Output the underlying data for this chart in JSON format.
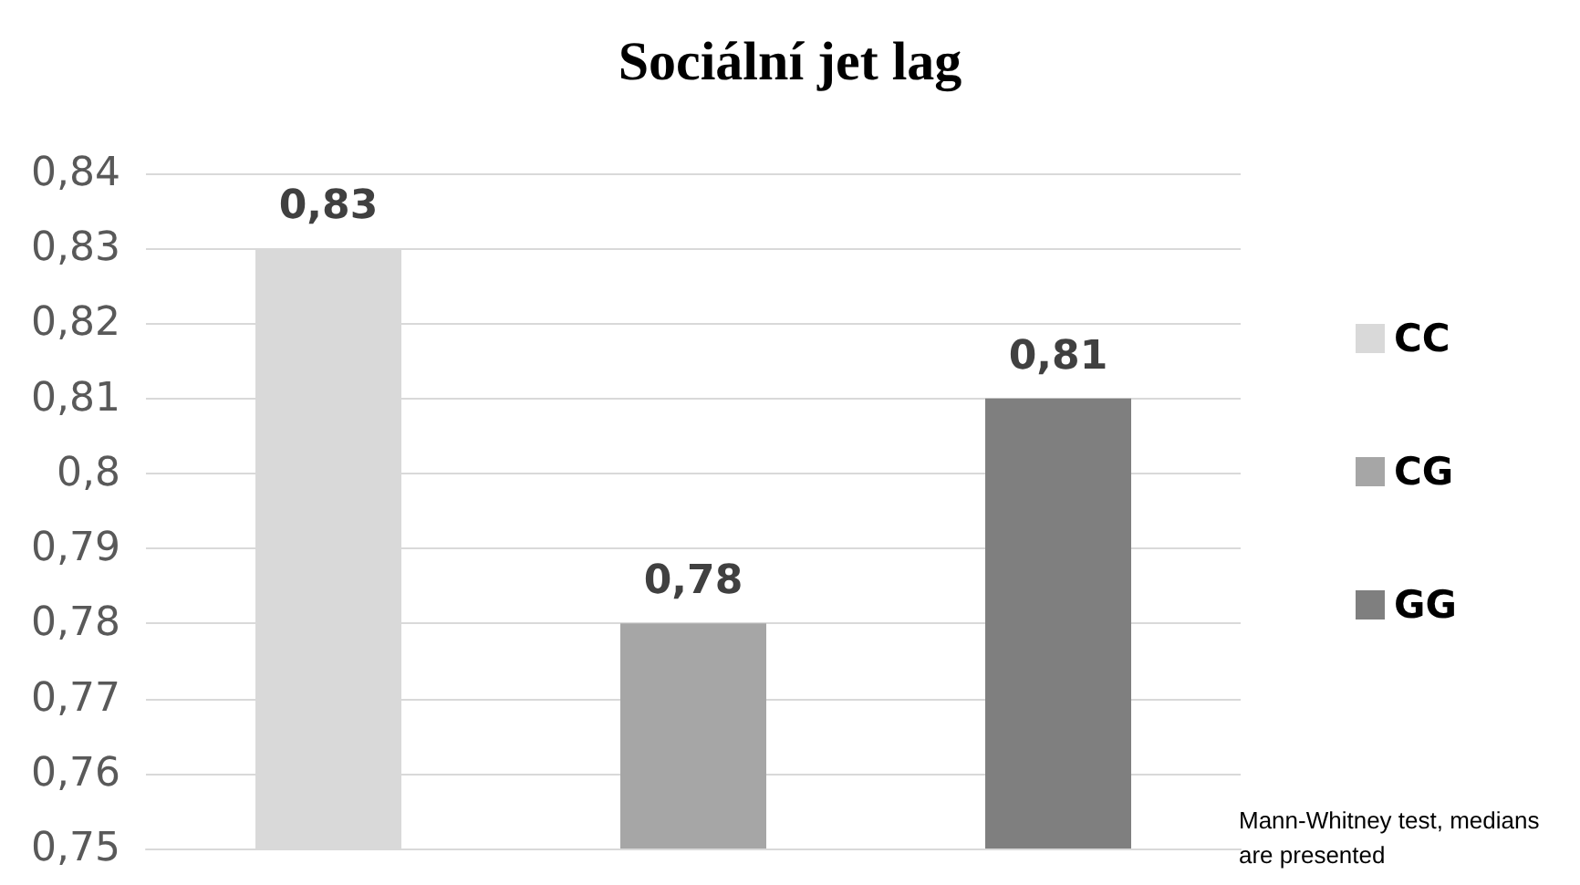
{
  "chart_data": {
    "type": "bar",
    "title": "Sociální jet lag",
    "categories": [
      null,
      null,
      null
    ],
    "series": [
      {
        "name": "CC",
        "color": "#d9d9d9",
        "values": [
          0.83,
          null,
          null
        ],
        "value_labels": [
          "0,83",
          null,
          null
        ]
      },
      {
        "name": "CG",
        "color": "#a6a6a6",
        "values": [
          null,
          0.78,
          null
        ],
        "value_labels": [
          null,
          "0,78",
          null
        ]
      },
      {
        "name": "GG",
        "color": "#7f7f7f",
        "values": [
          null,
          null,
          0.81
        ],
        "value_labels": [
          null,
          null,
          "0,81"
        ]
      }
    ],
    "ylim": [
      0.75,
      0.84
    ],
    "yticks": [
      {
        "value": 0.75,
        "label": "0,75"
      },
      {
        "value": 0.76,
        "label": "0,76"
      },
      {
        "value": 0.77,
        "label": "0,77"
      },
      {
        "value": 0.78,
        "label": "0,78"
      },
      {
        "value": 0.79,
        "label": "0,79"
      },
      {
        "value": 0.8,
        "label": "0,8"
      },
      {
        "value": 0.81,
        "label": "0,81"
      },
      {
        "value": 0.82,
        "label": "0,82"
      },
      {
        "value": 0.83,
        "label": "0,83"
      },
      {
        "value": 0.84,
        "label": "0,84"
      }
    ],
    "grid": "y",
    "legend": "right",
    "annotations": [
      "Mann-Whitney test, medians are presented"
    ]
  }
}
